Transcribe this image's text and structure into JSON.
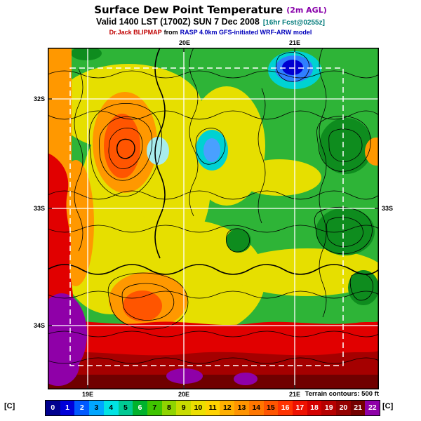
{
  "header": {
    "title": "Surface Dew Point Temperature",
    "title_unit": "(2m AGL)",
    "valid": "Valid 1400 LST (1700Z) SUN 7 Dec 2008",
    "forecast_tag": "[16hr Fcst@0255z]",
    "model_source": "Dr.Jack BLIPMAP",
    "model_from": "from",
    "model_detail": "RASP 4.0km GFS-initiated WRF-ARW model"
  },
  "map": {
    "top_ticks": [
      "20E",
      "21E"
    ],
    "bottom_ticks": [
      "19E",
      "20E",
      "21E"
    ],
    "left_ticks": [
      "32S",
      "33S",
      "34S"
    ],
    "right_ticks": [
      "33S"
    ],
    "footnote": "Terrain contours: 500 ft"
  },
  "colorbar": {
    "unit_left": "[C]",
    "unit_right": "[C]",
    "cells": [
      {
        "value": 0,
        "color": "#00008f"
      },
      {
        "value": 1,
        "color": "#0000d9"
      },
      {
        "value": 2,
        "color": "#0059ff"
      },
      {
        "value": 3,
        "color": "#00a6ff"
      },
      {
        "value": 4,
        "color": "#00e3e3"
      },
      {
        "value": 5,
        "color": "#00c993"
      },
      {
        "value": 6,
        "color": "#00b22d"
      },
      {
        "value": 7,
        "color": "#3fc400"
      },
      {
        "value": 8,
        "color": "#8fd400"
      },
      {
        "value": 9,
        "color": "#c8dc00"
      },
      {
        "value": 10,
        "color": "#ecdf00"
      },
      {
        "value": 11,
        "color": "#ffd300"
      },
      {
        "value": 12,
        "color": "#ffb000"
      },
      {
        "value": 13,
        "color": "#ff9400"
      },
      {
        "value": 14,
        "color": "#ff7700"
      },
      {
        "value": 15,
        "color": "#ff5500"
      },
      {
        "value": 16,
        "color": "#ff3300"
      },
      {
        "value": 17,
        "color": "#ee1100"
      },
      {
        "value": 18,
        "color": "#d40000"
      },
      {
        "value": 19,
        "color": "#b50000"
      },
      {
        "value": 20,
        "color": "#940000"
      },
      {
        "value": 21,
        "color": "#740000"
      },
      {
        "value": 22,
        "color": "#8f00a8"
      }
    ]
  }
}
